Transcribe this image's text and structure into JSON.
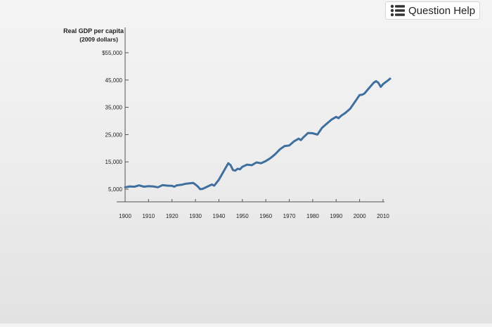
{
  "header": {
    "help_label": "Question Help",
    "help_icon": "list-icon"
  },
  "colors": {
    "line": "#3f6f9e",
    "axis": "#555555"
  },
  "chart_data": {
    "type": "line",
    "title": "",
    "ylabel_line1": "Real GDP per capita",
    "ylabel_line2": "(2009 dollars)",
    "xlabel": "",
    "xlim": [
      1900,
      2013
    ],
    "ylim": [
      5000,
      55000
    ],
    "y_ticks": [
      5000,
      15000,
      25000,
      35000,
      45000,
      55000
    ],
    "y_tick_labels": [
      "5,000",
      "15,000",
      "25,000",
      "35,000",
      "45,000",
      "$55,000"
    ],
    "x_ticks": [
      1900,
      1910,
      1920,
      1930,
      1940,
      1950,
      1960,
      1970,
      1980,
      1990,
      2000,
      2010
    ],
    "x_tick_labels": [
      "1900",
      "1910",
      "1920",
      "1930",
      "1940",
      "1950",
      "1960",
      "1970",
      "1980",
      "1990",
      "2000",
      "2010"
    ],
    "grid": false,
    "series": [
      {
        "points": [
          [
            1900,
            5700
          ],
          [
            1902,
            6000
          ],
          [
            1904,
            5900
          ],
          [
            1906,
            6400
          ],
          [
            1908,
            5900
          ],
          [
            1910,
            6100
          ],
          [
            1912,
            6000
          ],
          [
            1914,
            5700
          ],
          [
            1916,
            6500
          ],
          [
            1918,
            6300
          ],
          [
            1920,
            6200
          ],
          [
            1921,
            5900
          ],
          [
            1922,
            6400
          ],
          [
            1924,
            6600
          ],
          [
            1926,
            7000
          ],
          [
            1929,
            7300
          ],
          [
            1930,
            6700
          ],
          [
            1931,
            6000
          ],
          [
            1932,
            5000
          ],
          [
            1933,
            5100
          ],
          [
            1935,
            5900
          ],
          [
            1937,
            6700
          ],
          [
            1938,
            6300
          ],
          [
            1940,
            8500
          ],
          [
            1942,
            11500
          ],
          [
            1944,
            14500
          ],
          [
            1945,
            13800
          ],
          [
            1946,
            12000
          ],
          [
            1947,
            11800
          ],
          [
            1948,
            12500
          ],
          [
            1949,
            12300
          ],
          [
            1950,
            13200
          ],
          [
            1952,
            14000
          ],
          [
            1954,
            13800
          ],
          [
            1956,
            14800
          ],
          [
            1958,
            14500
          ],
          [
            1960,
            15300
          ],
          [
            1962,
            16400
          ],
          [
            1964,
            17800
          ],
          [
            1966,
            19600
          ],
          [
            1968,
            20800
          ],
          [
            1970,
            21000
          ],
          [
            1972,
            22500
          ],
          [
            1974,
            23500
          ],
          [
            1975,
            23000
          ],
          [
            1976,
            24000
          ],
          [
            1978,
            25600
          ],
          [
            1980,
            25500
          ],
          [
            1982,
            25000
          ],
          [
            1984,
            27500
          ],
          [
            1986,
            29000
          ],
          [
            1988,
            30500
          ],
          [
            1990,
            31500
          ],
          [
            1991,
            31000
          ],
          [
            1992,
            31800
          ],
          [
            1994,
            33000
          ],
          [
            1996,
            34500
          ],
          [
            1998,
            37000
          ],
          [
            2000,
            39500
          ],
          [
            2001,
            39600
          ],
          [
            2002,
            40000
          ],
          [
            2004,
            42000
          ],
          [
            2006,
            44000
          ],
          [
            2007,
            44600
          ],
          [
            2008,
            44000
          ],
          [
            2009,
            42500
          ],
          [
            2010,
            43500
          ],
          [
            2012,
            44800
          ],
          [
            2013,
            45500
          ]
        ]
      }
    ]
  }
}
